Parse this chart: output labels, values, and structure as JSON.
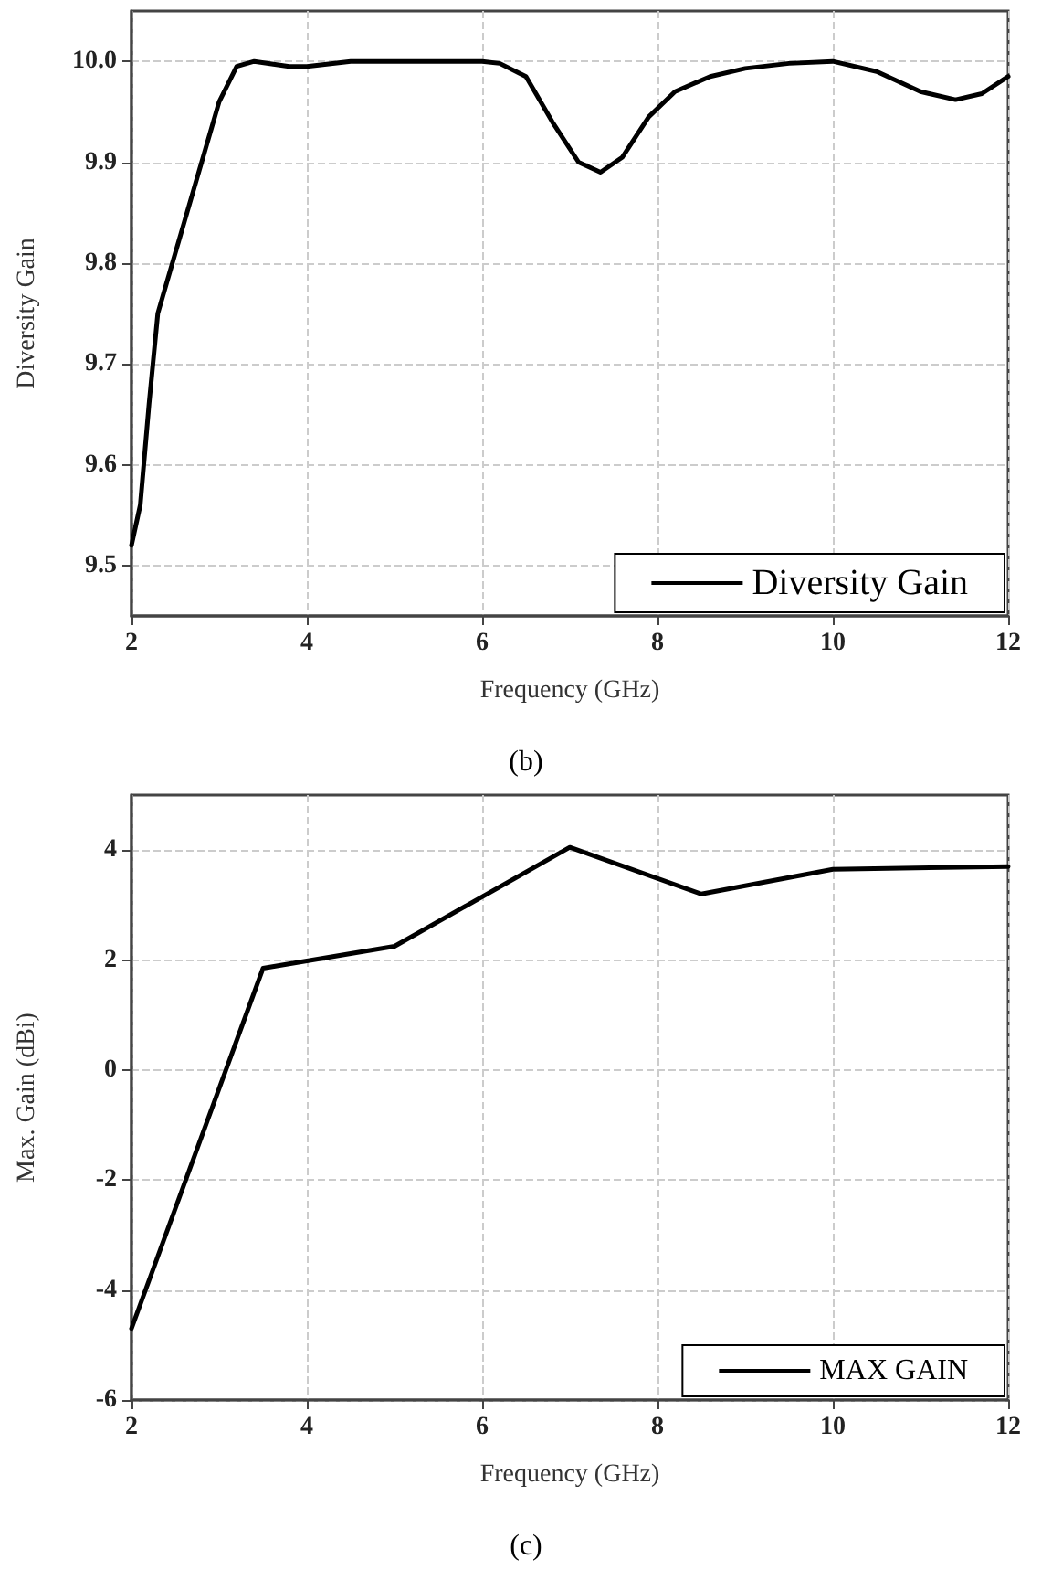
{
  "chart_data": [
    {
      "type": "line",
      "xlabel": "Frequency (GHz)",
      "ylabel": "Diversity Gain",
      "annotations": [
        "(b)"
      ],
      "series": [
        {
          "name": "Diversity Gain",
          "color": "#000000",
          "x": [
            2,
            2.1,
            2.2,
            2.3,
            2.5,
            2.8,
            3.0,
            3.2,
            3.4,
            3.8,
            4.0,
            4.5,
            6.0,
            6.2,
            6.5,
            6.8,
            7.1,
            7.35,
            7.6,
            7.9,
            8.2,
            8.6,
            9.0,
            9.5,
            10,
            10.5,
            11,
            11.4,
            11.7,
            12
          ],
          "values": [
            9.52,
            9.56,
            9.66,
            9.75,
            9.81,
            9.9,
            9.96,
            9.995,
            10.0,
            9.995,
            9.995,
            10.0,
            10.0,
            9.998,
            9.985,
            9.94,
            9.9,
            9.89,
            9.905,
            9.945,
            9.97,
            9.985,
            9.993,
            9.998,
            10.0,
            9.99,
            9.97,
            9.962,
            9.968,
            9.985
          ]
        }
      ],
      "xlim": [
        2,
        12
      ],
      "xticks": [
        2,
        4,
        6,
        8,
        10,
        12
      ],
      "ylim": [
        9.45,
        10.05
      ],
      "yticks": [
        9.5,
        9.6,
        9.7,
        9.8,
        9.9,
        {
          "value": 10,
          "label": "10.0"
        }
      ],
      "grid": true,
      "legend": "bottom right",
      "marker": "none",
      "line_style": "solid"
    },
    {
      "type": "line",
      "xlabel": "Frequency (GHz)",
      "ylabel": "Max. Gain (dBi)",
      "annotations": [
        "(c)"
      ],
      "series": [
        {
          "name": "MAX GAIN",
          "color": "#000000",
          "x": [
            2,
            3.5,
            5,
            7,
            8.5,
            10,
            12
          ],
          "values": [
            -4.7,
            1.85,
            2.25,
            4.05,
            3.2,
            3.65,
            3.7
          ]
        }
      ],
      "xlim": [
        2,
        12
      ],
      "xticks": [
        2,
        4,
        6,
        8,
        10,
        12
      ],
      "ylim": [
        -6,
        5
      ],
      "yticks": [
        -6,
        -4,
        -2,
        0,
        2,
        4
      ],
      "grid": true,
      "legend": "bottom right",
      "marker": "none",
      "line_style": "solid"
    }
  ]
}
